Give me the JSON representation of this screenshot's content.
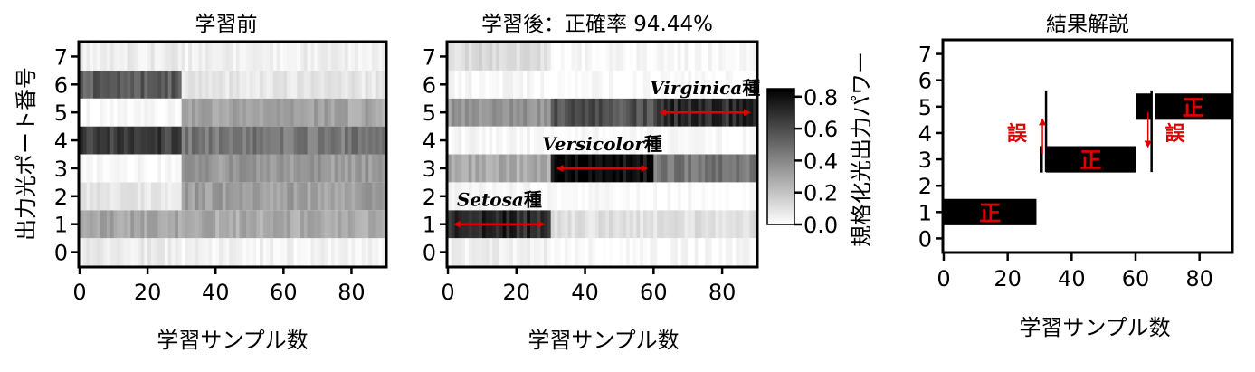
{
  "chart_data": [
    {
      "type": "heatmap",
      "title": "学習前",
      "xlabel": "学習サンプル数",
      "ylabel": "出力光ポート番号",
      "xlim": [
        0,
        90
      ],
      "ylim": [
        -0.5,
        7.5
      ],
      "xticks": [
        "0",
        "20",
        "40",
        "60",
        "80"
      ],
      "yticks": [
        "0",
        "1",
        "2",
        "3",
        "4",
        "5",
        "6",
        "7"
      ],
      "rows": [
        {
          "port": 0,
          "segments": [
            {
              "from": 0,
              "to": 30,
              "level": 0.06
            },
            {
              "from": 30,
              "to": 90,
              "level": 0.04
            }
          ]
        },
        {
          "port": 1,
          "segments": [
            {
              "from": 0,
              "to": 30,
              "level": 0.3
            },
            {
              "from": 30,
              "to": 90,
              "level": 0.28
            }
          ]
        },
        {
          "port": 2,
          "segments": [
            {
              "from": 0,
              "to": 30,
              "level": 0.08
            },
            {
              "from": 30,
              "to": 90,
              "level": 0.32
            }
          ]
        },
        {
          "port": 3,
          "segments": [
            {
              "from": 0,
              "to": 30,
              "level": 0.02
            },
            {
              "from": 30,
              "to": 90,
              "level": 0.34
            }
          ]
        },
        {
          "port": 4,
          "segments": [
            {
              "from": 0,
              "to": 30,
              "level": 0.65
            },
            {
              "from": 30,
              "to": 90,
              "level": 0.45
            }
          ]
        },
        {
          "port": 5,
          "segments": [
            {
              "from": 0,
              "to": 30,
              "level": 0.02
            },
            {
              "from": 30,
              "to": 90,
              "level": 0.3
            }
          ]
        },
        {
          "port": 6,
          "segments": [
            {
              "from": 0,
              "to": 30,
              "level": 0.55
            },
            {
              "from": 30,
              "to": 90,
              "level": 0.08
            }
          ]
        },
        {
          "port": 7,
          "segments": [
            {
              "from": 0,
              "to": 30,
              "level": 0.06
            },
            {
              "from": 30,
              "to": 90,
              "level": 0.05
            }
          ]
        }
      ]
    },
    {
      "type": "heatmap",
      "title": "学習後：正確率 94.44%",
      "xlabel": "学習サンプル数",
      "xlim": [
        0,
        90
      ],
      "ylim": [
        -0.5,
        7.5
      ],
      "xticks": [
        "0",
        "20",
        "40",
        "60",
        "80"
      ],
      "yticks": [
        "0",
        "1",
        "2",
        "3",
        "4",
        "5",
        "6",
        "7"
      ],
      "rows": [
        {
          "port": 0,
          "segments": [
            {
              "from": 0,
              "to": 30,
              "level": 0.05
            },
            {
              "from": 30,
              "to": 90,
              "level": 0.02
            }
          ]
        },
        {
          "port": 1,
          "segments": [
            {
              "from": 0,
              "to": 30,
              "level": 0.72
            },
            {
              "from": 30,
              "to": 90,
              "level": 0.1
            }
          ]
        },
        {
          "port": 2,
          "segments": [
            {
              "from": 0,
              "to": 30,
              "level": 0.02
            },
            {
              "from": 30,
              "to": 90,
              "level": 0.01
            }
          ]
        },
        {
          "port": 3,
          "segments": [
            {
              "from": 0,
              "to": 30,
              "level": 0.28
            },
            {
              "from": 30,
              "to": 60,
              "level": 0.82
            },
            {
              "from": 60,
              "to": 90,
              "level": 0.45
            }
          ]
        },
        {
          "port": 4,
          "segments": [
            {
              "from": 0,
              "to": 30,
              "level": 0.02
            },
            {
              "from": 30,
              "to": 90,
              "level": 0.01
            }
          ]
        },
        {
          "port": 5,
          "segments": [
            {
              "from": 0,
              "to": 30,
              "level": 0.35
            },
            {
              "from": 30,
              "to": 60,
              "level": 0.58
            },
            {
              "from": 60,
              "to": 90,
              "level": 0.7
            }
          ]
        },
        {
          "port": 6,
          "segments": [
            {
              "from": 0,
              "to": 30,
              "level": 0.02
            },
            {
              "from": 30,
              "to": 90,
              "level": 0.01
            }
          ]
        },
        {
          "port": 7,
          "segments": [
            {
              "from": 0,
              "to": 30,
              "level": 0.12
            },
            {
              "from": 30,
              "to": 90,
              "level": 0.02
            }
          ]
        }
      ],
      "annotations": [
        {
          "italic": "Setosa",
          "text": "種",
          "x_range": [
            0,
            30
          ],
          "port": 1
        },
        {
          "italic": "Versicolor",
          "text": "種",
          "x_range": [
            30,
            60
          ],
          "port": 3
        },
        {
          "italic": "Virginica",
          "text": "種",
          "x_range": [
            60,
            90
          ],
          "port": 5
        }
      ],
      "colorbar": {
        "label": "規格化光出力パワー",
        "range": [
          0.0,
          0.85
        ],
        "ticks": [
          "0.0",
          "0.2",
          "0.4",
          "0.6",
          "0.8"
        ],
        "colors": [
          "#ffffff",
          "#000000"
        ]
      }
    },
    {
      "type": "bar",
      "title": "結果解説",
      "xlabel": "学習サンプル数",
      "xlim": [
        0,
        90
      ],
      "ylim": [
        -0.5,
        7.5
      ],
      "xticks": [
        "0",
        "20",
        "40",
        "60",
        "80"
      ],
      "yticks": [
        "0",
        "1",
        "2",
        "3",
        "4",
        "5",
        "6",
        "7"
      ],
      "segments": [
        {
          "from": 0,
          "to": 29,
          "port": 1,
          "label": "正"
        },
        {
          "from": 30,
          "to": 31,
          "port": 3,
          "label": ""
        },
        {
          "from": 32,
          "to": 60,
          "port": 3,
          "label": "正"
        },
        {
          "from": 60,
          "to": 65,
          "port": 5,
          "label": ""
        },
        {
          "from": 66,
          "to": 90,
          "port": 5,
          "label": "正"
        }
      ],
      "errors": [
        {
          "x": 32,
          "from_port": 3,
          "to_port": 5,
          "label": "誤"
        },
        {
          "x": 65,
          "from_port": 5,
          "to_port": 3,
          "label": "誤"
        }
      ],
      "colors": {
        "bar": "#000000",
        "correct_label": "#e00000",
        "error": "#e00000"
      }
    }
  ]
}
